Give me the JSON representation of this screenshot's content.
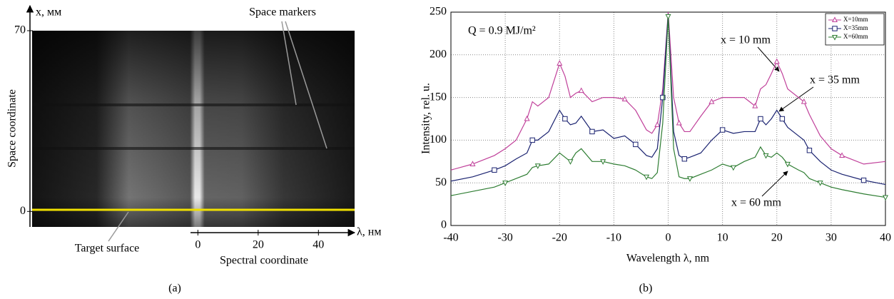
{
  "chart_data": [
    {
      "type": "image",
      "yunit_label": "x, мм",
      "ylabel": "Space coordinate",
      "xunit_label": "λ, нм",
      "xlabel": "Spectral coordinate",
      "xlim": [
        -55,
        52
      ],
      "xticks": [
        0,
        20,
        40
      ],
      "ylim": [
        -6,
        70
      ],
      "yticks": [
        0,
        70
      ],
      "annotations": [
        "Space markers",
        "Target surface"
      ],
      "panel_label": "(a)"
    },
    {
      "type": "line",
      "annotation": "Q = 0.9 MJ/m²",
      "xlabel": "Wavelength λ, nm",
      "ylabel": "Intensity, rel. u.",
      "xlim": [
        -40,
        40
      ],
      "xticks": [
        -40,
        -30,
        -20,
        -10,
        0,
        10,
        20,
        30,
        40
      ],
      "ylim": [
        0,
        250
      ],
      "yticks": [
        0,
        50,
        100,
        150,
        200,
        250
      ],
      "grid": true,
      "legend": "upper right",
      "x": [
        -40,
        -36,
        -32,
        -30,
        -28,
        -26,
        -25,
        -24,
        -22,
        -20,
        -19,
        -18,
        -17,
        -16,
        -14,
        -12,
        -10,
        -8,
        -6,
        -4,
        -3,
        -2,
        -1,
        0,
        1,
        2,
        3,
        4,
        6,
        8,
        10,
        12,
        14,
        16,
        17,
        18,
        19,
        20,
        21,
        22,
        24,
        25,
        26,
        28,
        30,
        32,
        36,
        40
      ],
      "series": [
        {
          "name": "X=10mm",
          "color": "#c0409a",
          "marker": "triangle",
          "values": [
            65,
            72,
            82,
            90,
            100,
            125,
            145,
            140,
            150,
            190,
            175,
            150,
            155,
            158,
            145,
            150,
            150,
            148,
            135,
            112,
            108,
            118,
            160,
            250,
            150,
            120,
            110,
            110,
            128,
            145,
            150,
            150,
            150,
            140,
            160,
            165,
            178,
            192,
            178,
            160,
            150,
            145,
            130,
            105,
            90,
            82,
            72,
            75
          ]
        },
        {
          "name": "X=35mm",
          "color": "#1a2270",
          "marker": "square",
          "values": [
            52,
            57,
            65,
            70,
            78,
            85,
            100,
            100,
            110,
            135,
            125,
            118,
            120,
            128,
            110,
            112,
            102,
            105,
            95,
            82,
            80,
            90,
            150,
            248,
            110,
            82,
            78,
            80,
            85,
            100,
            112,
            108,
            110,
            110,
            125,
            118,
            125,
            135,
            125,
            115,
            105,
            100,
            88,
            75,
            65,
            60,
            53,
            48
          ]
        },
        {
          "name": "X=60mm",
          "color": "#2e7d32",
          "marker": "triangle-down",
          "values": [
            35,
            40,
            45,
            50,
            55,
            60,
            68,
            70,
            72,
            85,
            80,
            75,
            85,
            90,
            75,
            75,
            72,
            70,
            65,
            57,
            55,
            62,
            120,
            245,
            90,
            57,
            55,
            55,
            60,
            65,
            72,
            68,
            75,
            80,
            92,
            82,
            80,
            85,
            80,
            72,
            65,
            62,
            55,
            50,
            45,
            42,
            37,
            33
          ]
        }
      ],
      "curve_labels": [
        "x = 10 mm",
        "x = 35 mm",
        "x = 60 mm"
      ],
      "panel_label": "(b)"
    }
  ]
}
